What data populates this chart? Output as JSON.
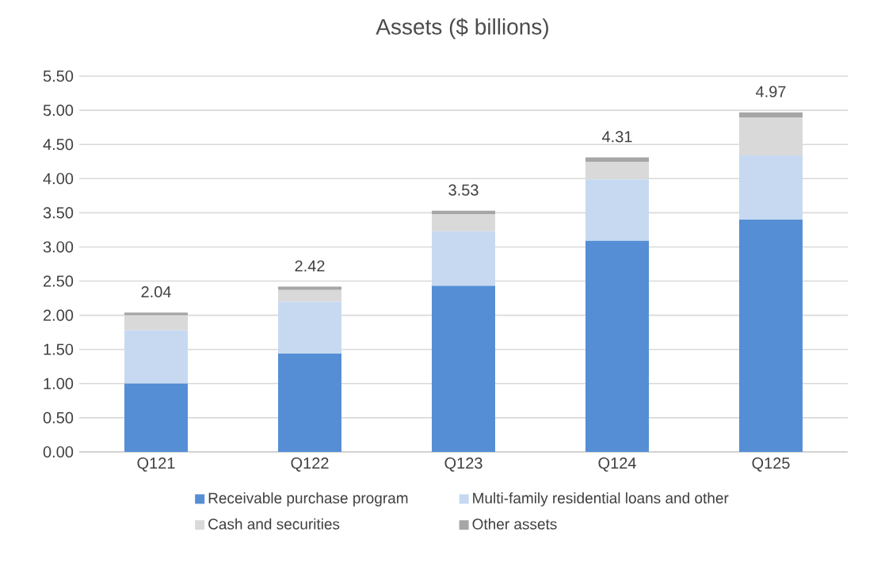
{
  "chart_data": {
    "type": "bar",
    "stacked": true,
    "title": "Assets ($ billions)",
    "categories": [
      "Q121",
      "Q122",
      "Q123",
      "Q124",
      "Q125"
    ],
    "series": [
      {
        "name": "Receivable purchase program",
        "color": "#558ed5",
        "values": [
          1.0,
          1.44,
          2.43,
          3.09,
          3.4
        ]
      },
      {
        "name": "Multi-family residential loans and other",
        "color": "#c6d9f1",
        "values": [
          0.78,
          0.76,
          0.8,
          0.9,
          0.94
        ]
      },
      {
        "name": "Cash and securities",
        "color": "#d9d9d9",
        "values": [
          0.22,
          0.17,
          0.25,
          0.25,
          0.55
        ]
      },
      {
        "name": "Other assets",
        "color": "#a6a6a6",
        "values": [
          0.04,
          0.05,
          0.05,
          0.07,
          0.08
        ]
      }
    ],
    "totals": [
      "2.04",
      "2.42",
      "3.53",
      "4.31",
      "4.97"
    ],
    "ylim": [
      0,
      5.5
    ],
    "yticks": [
      {
        "value": 0,
        "label": "0.00"
      },
      {
        "value": 0.5,
        "label": "0.50"
      },
      {
        "value": 1,
        "label": "1.00"
      },
      {
        "value": 1.5,
        "label": "1.50"
      },
      {
        "value": 2,
        "label": "2.00"
      },
      {
        "value": 2.5,
        "label": "2.50"
      },
      {
        "value": 3,
        "label": "3.00"
      },
      {
        "value": 3.5,
        "label": "3.50"
      },
      {
        "value": 4,
        "label": "4.00"
      },
      {
        "value": 4.5,
        "label": "4.50"
      },
      {
        "value": 5,
        "label": "5.00"
      },
      {
        "value": 5.5,
        "label": "5.50"
      }
    ],
    "grid": "y",
    "legend": "bottom"
  }
}
